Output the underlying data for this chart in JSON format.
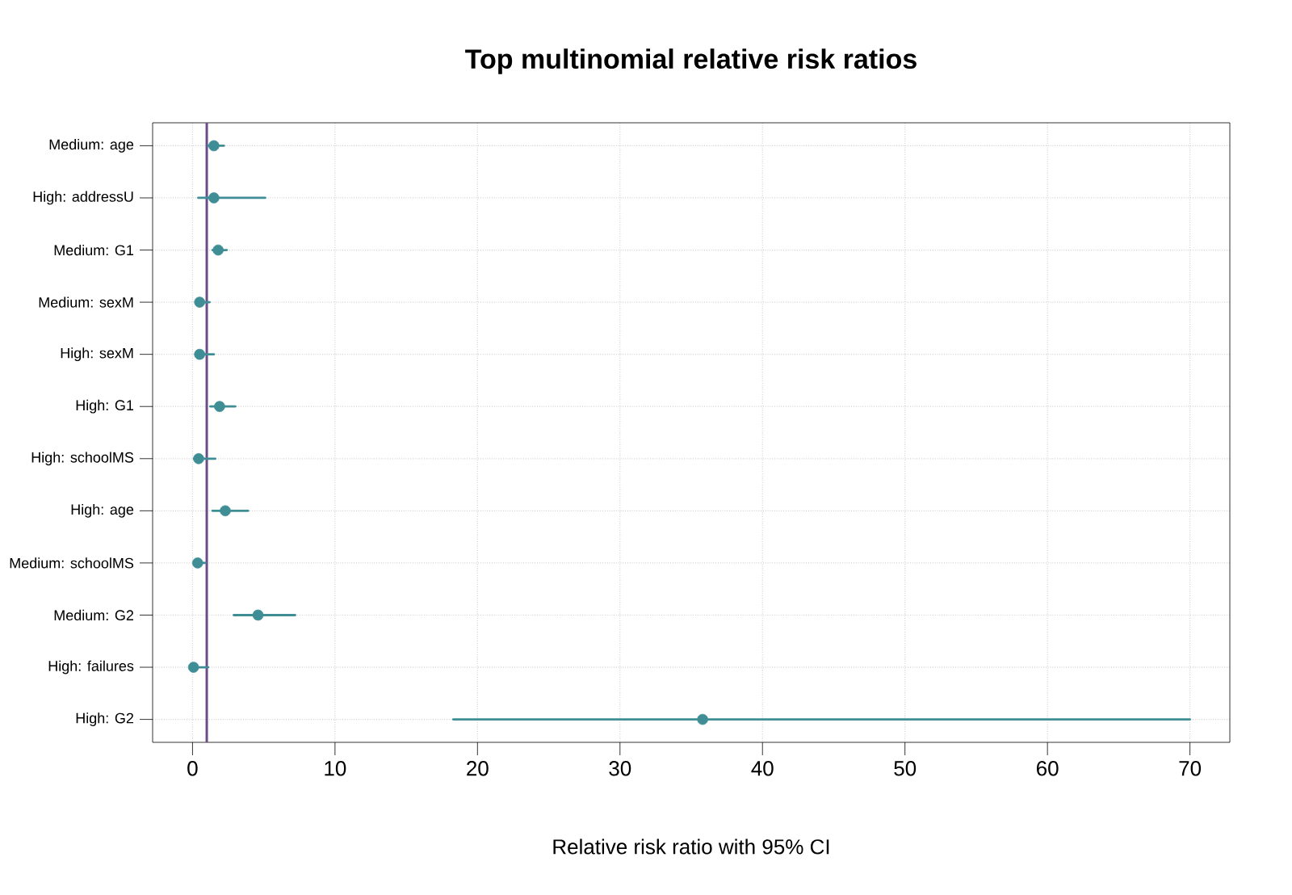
{
  "chart_data": {
    "type": "scatter",
    "orientation": "horizontal",
    "title": "Top multinomial relative risk ratios",
    "xlabel": "Relative risk ratio with 95% CI",
    "categories": [
      "Medium: age",
      "High: addressU",
      "Medium: G1",
      "Medium: sexM",
      "High: sexM",
      "High: G1",
      "High: schoolMS",
      "High: age",
      "Medium: schoolMS",
      "Medium: G2",
      "High: failures",
      "High: G2"
    ],
    "values": [
      1.5,
      1.5,
      1.8,
      0.5,
      0.5,
      1.9,
      0.43,
      2.3,
      0.36,
      4.6,
      0.07,
      35.8
    ],
    "errors": [
      [
        1.1,
        2.2
      ],
      [
        0.4,
        5.1
      ],
      [
        1.4,
        2.4
      ],
      [
        0.3,
        1.2
      ],
      [
        0.2,
        1.5
      ],
      [
        1.25,
        3.0
      ],
      [
        0.1,
        1.6
      ],
      [
        1.4,
        3.9
      ],
      [
        0.2,
        0.9
      ],
      [
        2.9,
        7.2
      ],
      [
        0.01,
        1.1
      ],
      [
        18.3,
        70
      ]
    ],
    "color": "#3f8e96",
    "marker": "circle",
    "grid": true,
    "xlim": [
      -2.8,
      72.8
    ],
    "xticks": [
      0,
      10,
      20,
      30,
      40,
      50,
      60,
      70
    ],
    "ref_lines": [
      {
        "axis": "x",
        "value": 1,
        "color": "#6b4c8a"
      }
    ]
  }
}
